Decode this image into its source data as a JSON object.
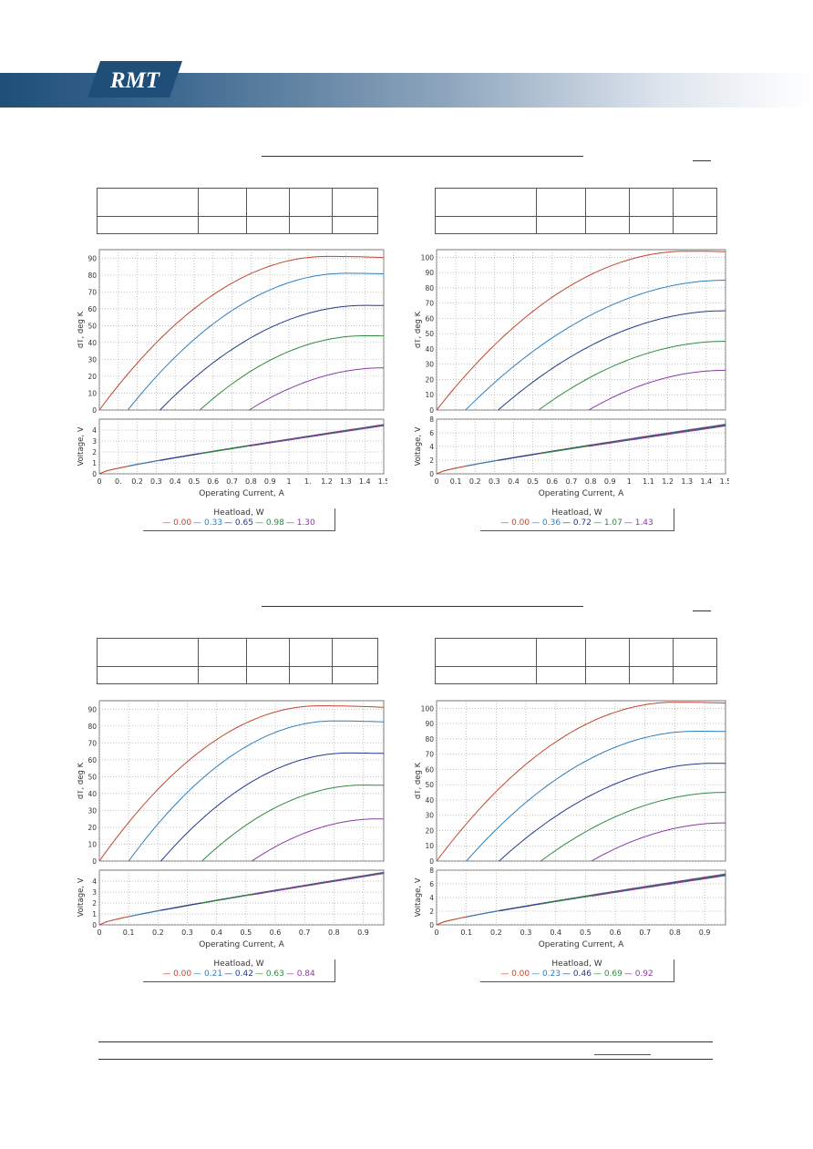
{
  "brand": {
    "logo_text": "RMT",
    "banner_colors": [
      "#1f4f79",
      "#ffffff"
    ]
  },
  "colors": {
    "series": [
      "#c0462e",
      "#2c7fc0",
      "#233a8f",
      "#2e8b3e",
      "#8a3aa6"
    ],
    "grid": "#aaaaaa",
    "voltage": "#3a5fa8"
  },
  "charts": [
    {
      "id": "tl",
      "y_top_label": "dT, deg K",
      "y_bot_label": "Voltage, V",
      "x_label": "Operating Current, A",
      "x_ticks": [
        "0",
        "0.",
        "0.2",
        "0.3",
        "0.4",
        "0.5",
        "0.6",
        "0.7",
        "0.8",
        "0.9",
        "1",
        "1.",
        "1.2",
        "1.3",
        "1.4",
        "1.5"
      ],
      "y_top_ticks": [
        "0",
        "10",
        "20",
        "30",
        "40",
        "50",
        "60",
        "70",
        "80",
        "90"
      ],
      "y_bot_ticks": [
        "0",
        "1",
        "2",
        "3",
        "4"
      ],
      "legend_title": "Heatload, W",
      "legend_values": [
        "0.00",
        "0.33",
        "0.65",
        "0.98",
        "1.30"
      ]
    },
    {
      "id": "tr",
      "y_top_label": "dT, deg K",
      "y_bot_label": "Voltage, V",
      "x_label": "Operating Current, A",
      "x_ticks": [
        "0",
        "0.1",
        "0.2",
        "0.3",
        "0.4",
        "0.5",
        "0.6",
        "0.7",
        "0.8",
        "0.9",
        "1",
        "1.1",
        "1.2",
        "1.3",
        "1.4",
        "1.5"
      ],
      "y_top_ticks": [
        "0",
        "10",
        "20",
        "30",
        "40",
        "50",
        "60",
        "70",
        "80",
        "90",
        "100"
      ],
      "y_bot_ticks": [
        "0",
        "2",
        "4",
        "6",
        "8"
      ],
      "legend_title": "Heatload, W",
      "legend_values": [
        "0.00",
        "0.36",
        "0.72",
        "1.07",
        "1.43"
      ]
    },
    {
      "id": "bl",
      "y_top_label": "dT, deg K",
      "y_bot_label": "Voltage, V",
      "x_label": "Operating Current, A",
      "x_ticks": [
        "0",
        "0.1",
        "0.2",
        "0.3",
        "0.4",
        "0.5",
        "0.6",
        "0.7",
        "0.8",
        "0.9"
      ],
      "y_top_ticks": [
        "0",
        "10",
        "20",
        "30",
        "40",
        "50",
        "60",
        "70",
        "80",
        "90"
      ],
      "y_bot_ticks": [
        "0",
        "1",
        "2",
        "3",
        "4"
      ],
      "legend_title": "Heatload, W",
      "legend_values": [
        "0.00",
        "0.21",
        "0.42",
        "0.63",
        "0.84"
      ]
    },
    {
      "id": "br",
      "y_top_label": "dT, deg K",
      "y_bot_label": "Voltage, V",
      "x_label": "Operating Current, A",
      "x_ticks": [
        "0",
        "0.1",
        "0.2",
        "0.3",
        "0.4",
        "0.5",
        "0.6",
        "0.7",
        "0.8",
        "0.9"
      ],
      "y_top_ticks": [
        "0",
        "10",
        "20",
        "30",
        "40",
        "50",
        "60",
        "70",
        "80",
        "90",
        "100"
      ],
      "y_bot_ticks": [
        "0",
        "2",
        "4",
        "6",
        "8"
      ],
      "legend_title": "Heatload, W",
      "legend_values": [
        "0.00",
        "0.23",
        "0.46",
        "0.69",
        "0.92"
      ]
    }
  ],
  "chart_data": [
    {
      "type": "line",
      "title": "",
      "xlabel": "Operating Current, A",
      "ylabel": "dT, deg K",
      "xlim": [
        0,
        1.5
      ],
      "ylim": [
        0,
        95
      ],
      "series": [
        {
          "name": "0.00",
          "imax": 1.2,
          "dtmax": 91,
          "i0": 0
        },
        {
          "name": "0.33",
          "imax": 1.3,
          "dtmax": 81,
          "i0": 0.15
        },
        {
          "name": "0.65",
          "imax": 1.4,
          "dtmax": 62,
          "i0": 0.32
        },
        {
          "name": "0.98",
          "imax": 1.4,
          "dtmax": 44,
          "i0": 0.53
        },
        {
          "name": "1.30",
          "imax": 1.5,
          "dtmax": 25,
          "i0": 0.79
        }
      ],
      "voltage": {
        "ylim": [
          0,
          5
        ],
        "vmax_at_xmax": [
          4.6,
          4.4
        ]
      }
    },
    {
      "type": "line",
      "title": "",
      "xlabel": "Operating Current, A",
      "ylabel": "dT, deg K",
      "xlim": [
        0,
        1.5
      ],
      "ylim": [
        0,
        105
      ],
      "series": [
        {
          "name": "0.00",
          "imax": 1.3,
          "dtmax": 104,
          "i0": 0
        },
        {
          "name": "0.36",
          "imax": 1.5,
          "dtmax": 85,
          "i0": 0.15
        },
        {
          "name": "0.72",
          "imax": 1.5,
          "dtmax": 65,
          "i0": 0.32
        },
        {
          "name": "1.07",
          "imax": 1.5,
          "dtmax": 45,
          "i0": 0.53
        },
        {
          "name": "1.43",
          "imax": 1.5,
          "dtmax": 26,
          "i0": 0.79
        }
      ],
      "voltage": {
        "ylim": [
          0,
          8
        ],
        "vmax_at_xmax": [
          7.4,
          7.0
        ]
      }
    },
    {
      "type": "line",
      "title": "",
      "xlabel": "Operating Current, A",
      "ylabel": "dT, deg K",
      "xlim": [
        0,
        0.97
      ],
      "ylim": [
        0,
        95
      ],
      "series": [
        {
          "name": "0.00",
          "imax": 0.75,
          "dtmax": 92,
          "i0": 0
        },
        {
          "name": "0.21",
          "imax": 0.8,
          "dtmax": 83,
          "i0": 0.1
        },
        {
          "name": "0.42",
          "imax": 0.85,
          "dtmax": 64,
          "i0": 0.21
        },
        {
          "name": "0.63",
          "imax": 0.9,
          "dtmax": 45,
          "i0": 0.35
        },
        {
          "name": "0.84",
          "imax": 0.95,
          "dtmax": 25,
          "i0": 0.52
        }
      ],
      "voltage": {
        "ylim": [
          0,
          5
        ],
        "vmax_at_xmax": [
          4.9,
          4.7
        ]
      }
    },
    {
      "type": "line",
      "title": "",
      "xlabel": "Operating Current, A",
      "ylabel": "dT, deg K",
      "xlim": [
        0,
        0.97
      ],
      "ylim": [
        0,
        105
      ],
      "series": [
        {
          "name": "0.00",
          "imax": 0.8,
          "dtmax": 104,
          "i0": 0
        },
        {
          "name": "0.23",
          "imax": 0.87,
          "dtmax": 85,
          "i0": 0.1
        },
        {
          "name": "0.46",
          "imax": 0.93,
          "dtmax": 64,
          "i0": 0.21
        },
        {
          "name": "0.69",
          "imax": 0.97,
          "dtmax": 45,
          "i0": 0.35
        },
        {
          "name": "0.92",
          "imax": 0.97,
          "dtmax": 25,
          "i0": 0.52
        }
      ],
      "voltage": {
        "ylim": [
          0,
          8
        ],
        "vmax_at_xmax": [
          7.6,
          7.2
        ]
      }
    }
  ],
  "footer": {
    "link_text": ""
  }
}
